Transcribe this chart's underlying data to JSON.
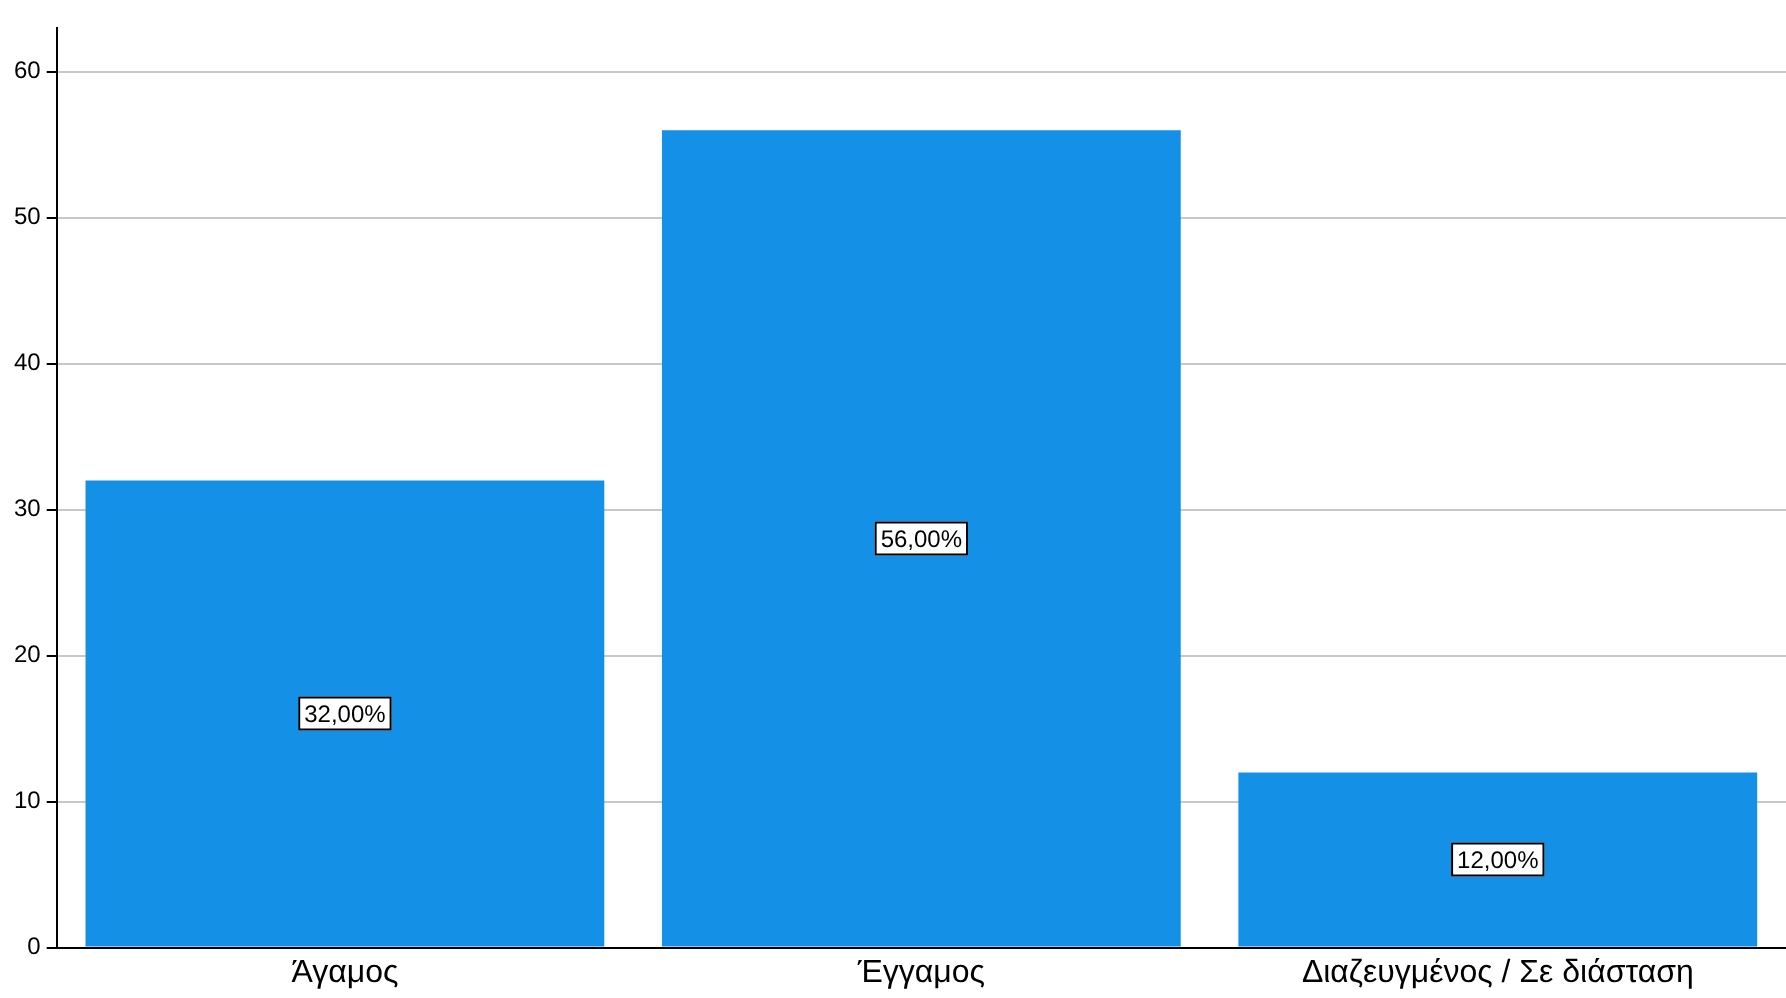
{
  "chart_data": {
    "type": "bar",
    "categories": [
      "Άγαμος",
      "Έγγαμος",
      "Διαζευγμένος / Σε διάσταση"
    ],
    "values": [
      32,
      56,
      12
    ],
    "value_labels": [
      "32,00%",
      "56,00%",
      "12,00%"
    ],
    "color": "#1491e6",
    "ylim": [
      0,
      63
    ],
    "yticks": [
      0,
      10,
      20,
      30,
      40,
      50,
      60
    ],
    "grid": "y"
  }
}
